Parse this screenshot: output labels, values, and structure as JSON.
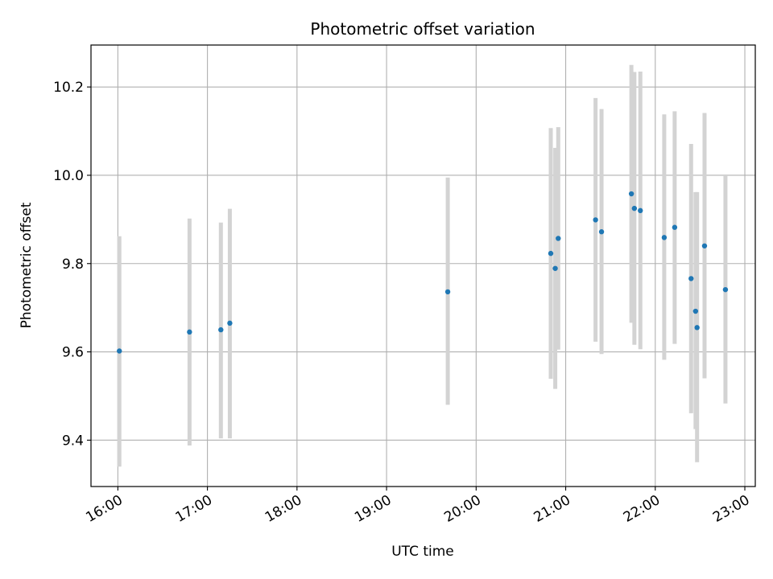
{
  "chart_data": {
    "type": "scatter",
    "title": "Photometric offset variation",
    "xlabel": "UTC time",
    "ylabel": "Photometric offset",
    "x_ticks": [
      "16:00",
      "17:00",
      "18:00",
      "19:00",
      "20:00",
      "21:00",
      "22:00",
      "23:00"
    ],
    "y_ticks": [
      "9.4",
      "9.6",
      "9.8",
      "10.0",
      "10.2"
    ],
    "xlim": [
      "15:42",
      "23:07"
    ],
    "ylim": [
      9.295,
      10.295
    ],
    "grid": true,
    "marker_color": "#1f77b4",
    "errorbar_color": "#d3d3d3",
    "points": [
      {
        "t": "16:01",
        "y": 9.602,
        "lo": 9.34,
        "hi": 9.862
      },
      {
        "t": "16:48",
        "y": 9.645,
        "lo": 9.388,
        "hi": 9.902
      },
      {
        "t": "17:09",
        "y": 9.65,
        "lo": 9.404,
        "hi": 9.893
      },
      {
        "t": "17:15",
        "y": 9.665,
        "lo": 9.404,
        "hi": 9.924
      },
      {
        "t": "19:41",
        "y": 9.736,
        "lo": 9.48,
        "hi": 9.995
      },
      {
        "t": "20:50",
        "y": 9.823,
        "lo": 9.539,
        "hi": 10.107
      },
      {
        "t": "20:53",
        "y": 9.789,
        "lo": 9.516,
        "hi": 10.062
      },
      {
        "t": "20:55",
        "y": 9.857,
        "lo": 9.605,
        "hi": 10.109
      },
      {
        "t": "21:20",
        "y": 9.899,
        "lo": 9.623,
        "hi": 10.175
      },
      {
        "t": "21:24",
        "y": 9.872,
        "lo": 9.595,
        "hi": 10.15
      },
      {
        "t": "21:44",
        "y": 9.958,
        "lo": 9.666,
        "hi": 10.25
      },
      {
        "t": "21:46",
        "y": 9.925,
        "lo": 9.616,
        "hi": 10.234
      },
      {
        "t": "21:50",
        "y": 9.92,
        "lo": 9.606,
        "hi": 10.235
      },
      {
        "t": "22:06",
        "y": 9.859,
        "lo": 9.582,
        "hi": 10.138
      },
      {
        "t": "22:13",
        "y": 9.882,
        "lo": 9.618,
        "hi": 10.145
      },
      {
        "t": "22:24",
        "y": 9.766,
        "lo": 9.461,
        "hi": 10.071
      },
      {
        "t": "22:27",
        "y": 9.692,
        "lo": 9.425,
        "hi": 9.962
      },
      {
        "t": "22:28",
        "y": 9.655,
        "lo": 9.35,
        "hi": 9.962
      },
      {
        "t": "22:33",
        "y": 9.84,
        "lo": 9.54,
        "hi": 10.141
      },
      {
        "t": "22:47",
        "y": 9.741,
        "lo": 9.483,
        "hi": 10.0
      }
    ]
  }
}
